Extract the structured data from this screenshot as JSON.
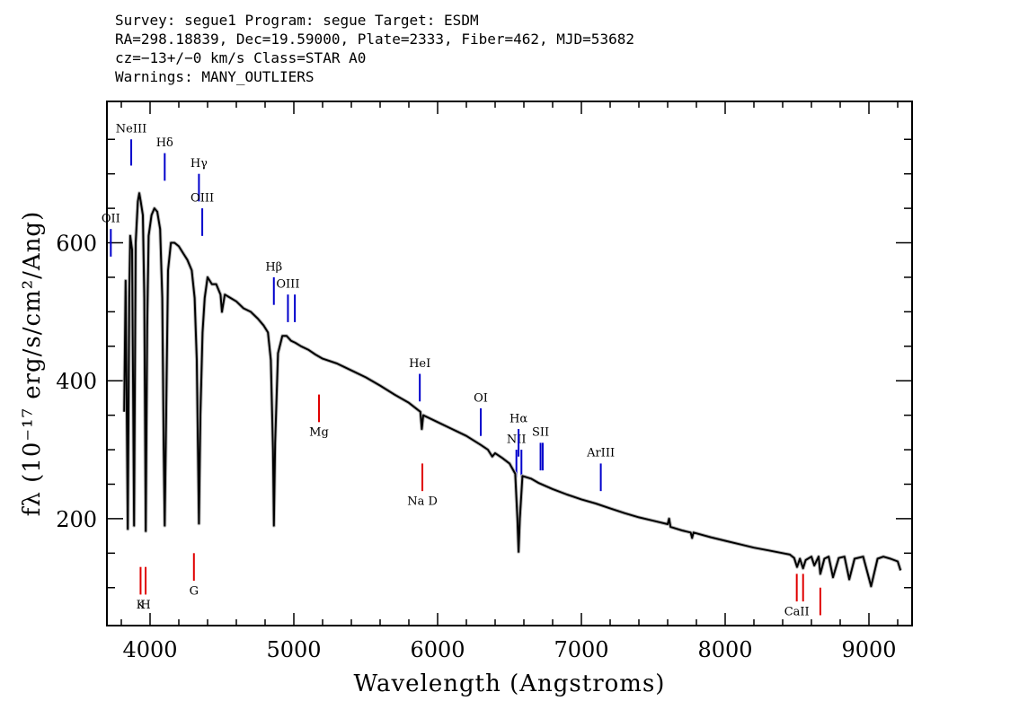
{
  "header": {
    "line1": "Survey: segue1 Program: segue Target: ESDM",
    "line2": "RA=298.18839, Dec=19.59000, Plate=2333, Fiber=462, MJD=53682",
    "line3": "cz=−13+/−0 km/s Class=STAR A0",
    "line4": "Warnings: MANY_OUTLIERS"
  },
  "chart_data": {
    "type": "line",
    "title": "",
    "xlabel": "Wavelength (Angstroms)",
    "ylabel": "fλ (10⁻¹⁷ erg/s/cm²/Ang)",
    "xlim": [
      3700,
      9300
    ],
    "ylim": [
      45,
      805
    ],
    "xticks": [
      4000,
      5000,
      6000,
      7000,
      8000,
      9000
    ],
    "yticks": [
      200,
      400,
      600
    ],
    "series": [
      {
        "values": [
          [
            3820,
            355
          ],
          [
            3830,
            545
          ],
          [
            3835,
            430
          ],
          [
            3845,
            185
          ],
          [
            3855,
            520
          ],
          [
            3862,
            610
          ],
          [
            3875,
            590
          ],
          [
            3889,
            190
          ],
          [
            3900,
            600
          ],
          [
            3915,
            660
          ],
          [
            3925,
            672
          ],
          [
            3935,
            660
          ],
          [
            3950,
            640
          ],
          [
            3960,
            520
          ],
          [
            3970,
            182
          ],
          [
            3980,
            480
          ],
          [
            3990,
            610
          ],
          [
            4010,
            640
          ],
          [
            4030,
            650
          ],
          [
            4050,
            645
          ],
          [
            4070,
            620
          ],
          [
            4085,
            520
          ],
          [
            4095,
            300
          ],
          [
            4102,
            190
          ],
          [
            4110,
            320
          ],
          [
            4125,
            560
          ],
          [
            4145,
            600
          ],
          [
            4170,
            600
          ],
          [
            4200,
            595
          ],
          [
            4230,
            585
          ],
          [
            4260,
            575
          ],
          [
            4290,
            560
          ],
          [
            4310,
            520
          ],
          [
            4325,
            430
          ],
          [
            4340,
            193
          ],
          [
            4350,
            350
          ],
          [
            4365,
            470
          ],
          [
            4380,
            520
          ],
          [
            4400,
            550
          ],
          [
            4430,
            540
          ],
          [
            4460,
            540
          ],
          [
            4490,
            525
          ],
          [
            4500,
            500
          ],
          [
            4520,
            525
          ],
          [
            4560,
            520
          ],
          [
            4600,
            515
          ],
          [
            4650,
            505
          ],
          [
            4700,
            500
          ],
          [
            4750,
            490
          ],
          [
            4790,
            480
          ],
          [
            4820,
            470
          ],
          [
            4840,
            430
          ],
          [
            4855,
            300
          ],
          [
            4861,
            190
          ],
          [
            4870,
            310
          ],
          [
            4890,
            440
          ],
          [
            4920,
            465
          ],
          [
            4950,
            465
          ],
          [
            4980,
            458
          ],
          [
            5010,
            455
          ],
          [
            5050,
            450
          ],
          [
            5100,
            445
          ],
          [
            5150,
            438
          ],
          [
            5200,
            432
          ],
          [
            5300,
            425
          ],
          [
            5400,
            415
          ],
          [
            5500,
            405
          ],
          [
            5600,
            393
          ],
          [
            5700,
            380
          ],
          [
            5800,
            368
          ],
          [
            5880,
            355
          ],
          [
            5890,
            330
          ],
          [
            5900,
            350
          ],
          [
            6000,
            340
          ],
          [
            6100,
            330
          ],
          [
            6200,
            320
          ],
          [
            6300,
            307
          ],
          [
            6350,
            300
          ],
          [
            6380,
            290
          ],
          [
            6400,
            295
          ],
          [
            6450,
            288
          ],
          [
            6500,
            280
          ],
          [
            6540,
            265
          ],
          [
            6555,
            200
          ],
          [
            6563,
            152
          ],
          [
            6572,
            200
          ],
          [
            6590,
            262
          ],
          [
            6650,
            258
          ],
          [
            6700,
            252
          ],
          [
            6800,
            243
          ],
          [
            6900,
            235
          ],
          [
            7000,
            228
          ],
          [
            7100,
            222
          ],
          [
            7200,
            215
          ],
          [
            7300,
            208
          ],
          [
            7400,
            202
          ],
          [
            7500,
            197
          ],
          [
            7600,
            192
          ],
          [
            7610,
            200
          ],
          [
            7620,
            188
          ],
          [
            7700,
            183
          ],
          [
            7760,
            180
          ],
          [
            7770,
            172
          ],
          [
            7780,
            180
          ],
          [
            7900,
            173
          ],
          [
            8000,
            168
          ],
          [
            8100,
            163
          ],
          [
            8200,
            158
          ],
          [
            8300,
            154
          ],
          [
            8400,
            150
          ],
          [
            8450,
            148
          ],
          [
            8480,
            143
          ],
          [
            8500,
            130
          ],
          [
            8520,
            142
          ],
          [
            8542,
            128
          ],
          [
            8560,
            140
          ],
          [
            8600,
            145
          ],
          [
            8620,
            132
          ],
          [
            8650,
            145
          ],
          [
            8662,
            120
          ],
          [
            8690,
            142
          ],
          [
            8720,
            145
          ],
          [
            8750,
            115
          ],
          [
            8790,
            143
          ],
          [
            8830,
            145
          ],
          [
            8863,
            112
          ],
          [
            8900,
            142
          ],
          [
            8960,
            145
          ],
          [
            9015,
            102
          ],
          [
            9060,
            142
          ],
          [
            9100,
            145
          ],
          [
            9150,
            142
          ],
          [
            9200,
            138
          ],
          [
            9220,
            125
          ]
        ]
      }
    ],
    "emission_lines": [
      {
        "label": "OII",
        "wavelength": 3727,
        "y_top": 620,
        "y_bottom": 580,
        "label_y": 630,
        "color": "#0000cc"
      },
      {
        "label": "NeIII",
        "wavelength": 3869,
        "y_top": 750,
        "y_bottom": 712,
        "label_y": 760,
        "color": "#0000cc"
      },
      {
        "label": "Hδ",
        "wavelength": 4102,
        "y_top": 730,
        "y_bottom": 690,
        "label_y": 740,
        "color": "#0000cc"
      },
      {
        "label": "Hγ",
        "wavelength": 4340,
        "y_top": 700,
        "y_bottom": 660,
        "label_y": 710,
        "color": "#0000cc"
      },
      {
        "label": "OIII",
        "wavelength": 4363,
        "y_top": 650,
        "y_bottom": 610,
        "label_y": 660,
        "color": "#0000cc"
      },
      {
        "label": "Hβ",
        "wavelength": 4861,
        "y_top": 550,
        "y_bottom": 510,
        "label_y": 560,
        "color": "#0000cc"
      },
      {
        "label": "OIII",
        "wavelength": 4959,
        "y_top": 525,
        "y_bottom": 485,
        "label_y": 535,
        "color": "#0000cc"
      },
      {
        "label": "",
        "wavelength": 5007,
        "y_top": 525,
        "y_bottom": 485,
        "label_y": 535,
        "color": "#0000cc"
      },
      {
        "label": "HeI",
        "wavelength": 5876,
        "y_top": 410,
        "y_bottom": 370,
        "label_y": 420,
        "color": "#0000cc"
      },
      {
        "label": "OI",
        "wavelength": 6300,
        "y_top": 360,
        "y_bottom": 320,
        "label_y": 370,
        "color": "#0000cc"
      },
      {
        "label": "NII",
        "wavelength": 6548,
        "y_top": 300,
        "y_bottom": 260,
        "label_y": 310,
        "color": "#0000cc"
      },
      {
        "label": "Hα",
        "wavelength": 6563,
        "y_top": 330,
        "y_bottom": 290,
        "label_y": 340,
        "color": "#0000cc"
      },
      {
        "label": "",
        "wavelength": 6583,
        "y_top": 300,
        "y_bottom": 260,
        "label_y": 310,
        "color": "#0000cc"
      },
      {
        "label": "SII",
        "wavelength": 6716,
        "y_top": 310,
        "y_bottom": 270,
        "label_y": 320,
        "color": "#0000cc"
      },
      {
        "label": "",
        "wavelength": 6731,
        "y_top": 310,
        "y_bottom": 270,
        "label_y": 320,
        "color": "#0000cc"
      },
      {
        "label": "ArIII",
        "wavelength": 7135,
        "y_top": 280,
        "y_bottom": 240,
        "label_y": 290,
        "color": "#0000cc"
      }
    ],
    "absorption_lines": [
      {
        "label": "K",
        "wavelength": 3934,
        "y_top": 130,
        "y_bottom": 90,
        "label_y": 70,
        "color": "#e00000"
      },
      {
        "label": "H",
        "wavelength": 3969,
        "y_top": 130,
        "y_bottom": 90,
        "label_y": 70,
        "color": "#e00000"
      },
      {
        "label": "G",
        "wavelength": 4305,
        "y_top": 150,
        "y_bottom": 110,
        "label_y": 90,
        "color": "#e00000"
      },
      {
        "label": "Mg",
        "wavelength": 5175,
        "y_top": 380,
        "y_bottom": 340,
        "label_y": 320,
        "color": "#e00000"
      },
      {
        "label": "Na D",
        "wavelength": 5894,
        "y_top": 280,
        "y_bottom": 240,
        "label_y": 220,
        "color": "#e00000"
      },
      {
        "label": "CaII",
        "wavelength": 8498,
        "y_top": 120,
        "y_bottom": 80,
        "label_y": 60,
        "color": "#e00000"
      },
      {
        "label": "",
        "wavelength": 8542,
        "y_top": 120,
        "y_bottom": 80,
        "label_y": 60,
        "color": "#e00000"
      },
      {
        "label": "",
        "wavelength": 8662,
        "y_top": 100,
        "y_bottom": 60,
        "label_y": 60,
        "color": "#e00000"
      }
    ]
  }
}
